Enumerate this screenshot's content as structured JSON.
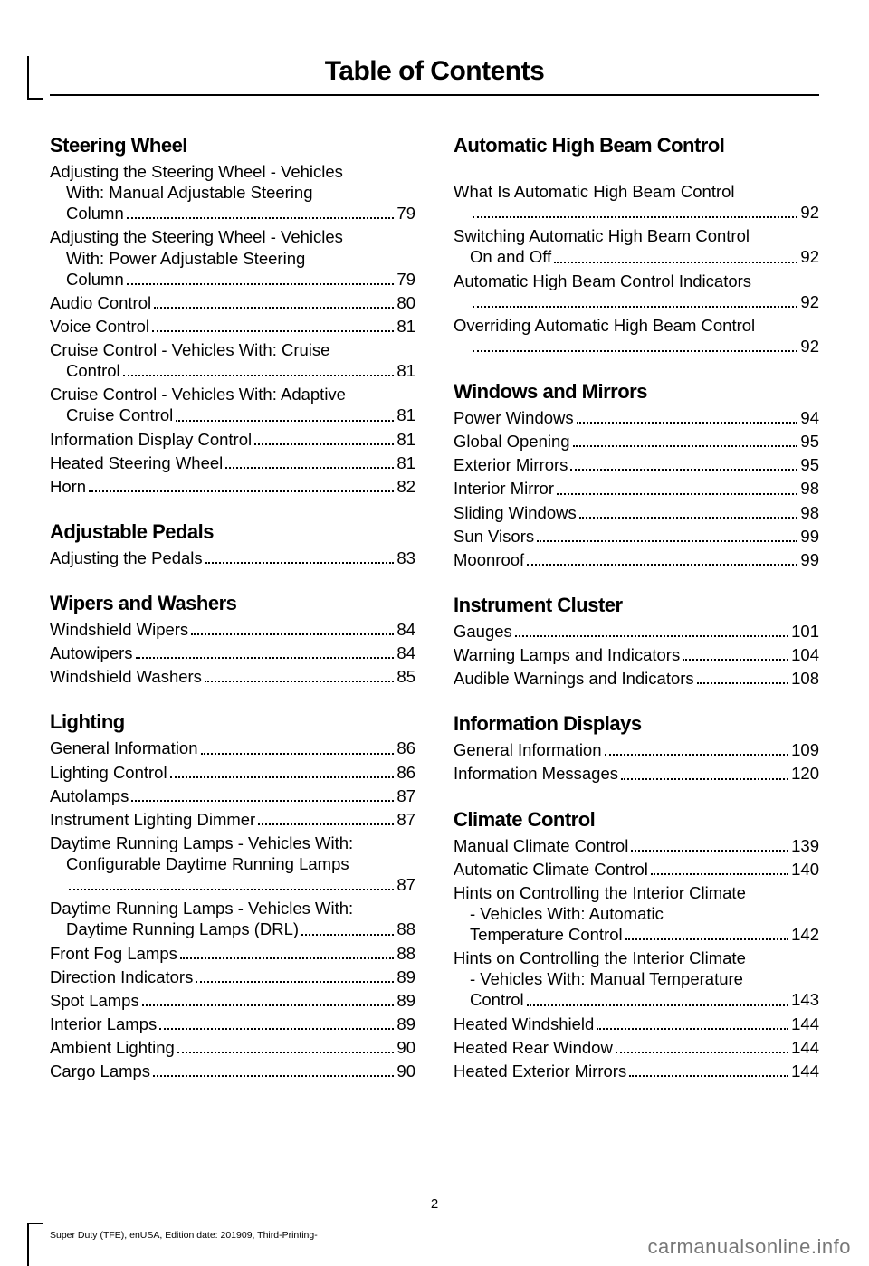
{
  "page_title": "Table of Contents",
  "page_number": "2",
  "footer_left": "Super Duty (TFE), enUSA, Edition date: 201909, Third-Printing-",
  "footer_right": "carmanualsonline.info",
  "columns": [
    [
      {
        "title": "Steering Wheel",
        "entries": [
          {
            "label": "Adjusting the Steering Wheel - Vehicles",
            "cont": "With: Manual Adjustable Steering",
            "cont2": "Column",
            "page": "79"
          },
          {
            "label": "Adjusting the Steering Wheel - Vehicles",
            "cont": "With: Power Adjustable Steering",
            "cont2": "Column",
            "page": "79"
          },
          {
            "label": "Audio Control",
            "page": "80"
          },
          {
            "label": "Voice Control",
            "page": "81"
          },
          {
            "label": "Cruise Control - Vehicles With: Cruise",
            "cont2": "Control",
            "page": "81"
          },
          {
            "label": "Cruise Control - Vehicles With: Adaptive",
            "cont2": "Cruise Control",
            "page": "81"
          },
          {
            "label": "Information Display Control",
            "page": "81"
          },
          {
            "label": "Heated Steering Wheel",
            "page": "81"
          },
          {
            "label": "Horn",
            "page": "82"
          }
        ]
      },
      {
        "title": "Adjustable Pedals",
        "entries": [
          {
            "label": "Adjusting the Pedals",
            "page": "83"
          }
        ]
      },
      {
        "title": "Wipers and Washers",
        "entries": [
          {
            "label": "Windshield Wipers",
            "page": "84"
          },
          {
            "label": "Autowipers",
            "page": "84"
          },
          {
            "label": "Windshield Washers",
            "page": "85"
          }
        ]
      },
      {
        "title": "Lighting",
        "entries": [
          {
            "label": "General Information",
            "page": "86"
          },
          {
            "label": "Lighting Control",
            "page": "86"
          },
          {
            "label": "Autolamps",
            "page": "87"
          },
          {
            "label": "Instrument Lighting Dimmer",
            "page": "87"
          },
          {
            "label": "Daytime Running Lamps - Vehicles With:",
            "cont": "Configurable Daytime Running Lamps",
            "cont2": "",
            "page": "87"
          },
          {
            "label": "Daytime Running Lamps - Vehicles With:",
            "cont2": "Daytime Running Lamps (DRL)",
            "page": "88"
          },
          {
            "label": "Front Fog Lamps",
            "page": "88"
          },
          {
            "label": "Direction Indicators",
            "page": "89"
          },
          {
            "label": "Spot Lamps",
            "page": "89"
          },
          {
            "label": "Interior Lamps",
            "page": "89"
          },
          {
            "label": "Ambient Lighting",
            "page": "90"
          },
          {
            "label": "Cargo Lamps",
            "page": "90"
          }
        ]
      }
    ],
    [
      {
        "title": "Automatic High Beam Control",
        "spacer_before_entries": true,
        "entries": [
          {
            "label": "What Is Automatic High Beam Control",
            "cont2": "",
            "page": "92"
          },
          {
            "label": "Switching Automatic High Beam Control",
            "cont2": "On and Off",
            "page": "92"
          },
          {
            "label": "Automatic High Beam Control Indicators",
            "cont2": "",
            "page": "92"
          },
          {
            "label": "Overriding Automatic High Beam Control",
            "cont2": "",
            "page": "92"
          }
        ]
      },
      {
        "title": "Windows and Mirrors",
        "entries": [
          {
            "label": "Power Windows",
            "page": "94"
          },
          {
            "label": "Global Opening",
            "page": "95"
          },
          {
            "label": "Exterior Mirrors",
            "page": "95"
          },
          {
            "label": "Interior Mirror",
            "page": "98"
          },
          {
            "label": "Sliding Windows",
            "page": "98"
          },
          {
            "label": "Sun Visors",
            "page": "99"
          },
          {
            "label": "Moonroof",
            "page": "99"
          }
        ]
      },
      {
        "title": "Instrument Cluster",
        "entries": [
          {
            "label": "Gauges",
            "page": "101"
          },
          {
            "label": "Warning Lamps and Indicators",
            "page": "104"
          },
          {
            "label": "Audible Warnings and Indicators",
            "page": "108"
          }
        ]
      },
      {
        "title": "Information Displays",
        "entries": [
          {
            "label": "General Information",
            "page": "109"
          },
          {
            "label": "Information Messages",
            "page": "120"
          }
        ]
      },
      {
        "title": "Climate Control",
        "entries": [
          {
            "label": "Manual Climate Control",
            "page": "139"
          },
          {
            "label": "Automatic Climate Control",
            "page": "140"
          },
          {
            "label": "Hints on Controlling the Interior Climate",
            "cont": "- Vehicles With: Automatic",
            "cont2": "Temperature Control",
            "page": "142"
          },
          {
            "label": "Hints on Controlling the Interior Climate",
            "cont": "- Vehicles With: Manual Temperature",
            "cont2": "Control",
            "page": "143"
          },
          {
            "label": "Heated Windshield",
            "page": "144"
          },
          {
            "label": "Heated Rear Window",
            "page": "144"
          },
          {
            "label": "Heated Exterior Mirrors",
            "page": "144"
          }
        ]
      }
    ]
  ]
}
